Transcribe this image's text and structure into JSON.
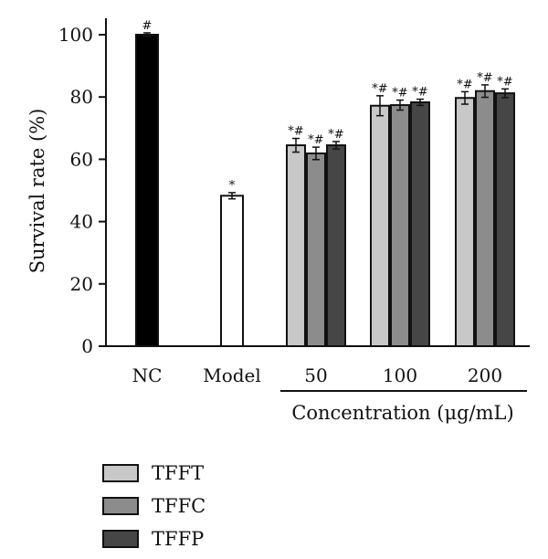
{
  "chart_data": {
    "type": "bar",
    "ylabel": "Survival rate (%)",
    "ylim": [
      0,
      100
    ],
    "yticks": [
      0,
      20,
      40,
      60,
      80,
      100
    ],
    "group_axis_label": "Concentration (μg/mL)",
    "controls": [
      {
        "label": "NC",
        "value": 100,
        "error": 0.6,
        "mark": "#",
        "color": "#000000"
      },
      {
        "label": "Model",
        "value": 48.3,
        "error": 1.0,
        "mark": "*",
        "color": "#ffffff"
      }
    ],
    "categories": [
      "50",
      "100",
      "200"
    ],
    "series": [
      {
        "name": "TFFT",
        "color": "#c8c8c8",
        "values": [
          64.5,
          77.2,
          79.7
        ],
        "errors": [
          2.2,
          3.2,
          2.0
        ],
        "marks": [
          "*#",
          "*#",
          "*#"
        ]
      },
      {
        "name": "TFFC",
        "color": "#8c8c8c",
        "values": [
          61.9,
          77.4,
          81.9
        ],
        "errors": [
          2.0,
          1.6,
          2.0
        ],
        "marks": [
          "*#",
          "*#",
          "*#"
        ]
      },
      {
        "name": "TFFP",
        "color": "#464646",
        "values": [
          64.5,
          78.3,
          81.2
        ],
        "errors": [
          1.2,
          1.0,
          1.4
        ],
        "marks": [
          "*#",
          "*#",
          "*#"
        ]
      }
    ]
  }
}
